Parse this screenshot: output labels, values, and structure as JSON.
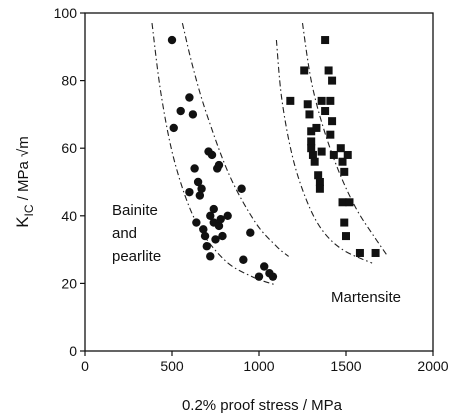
{
  "chart_data": {
    "type": "scatter",
    "xlabel": "0.2% proof stress / MPa",
    "ylabel_main": "K",
    "ylabel_sub": "IC",
    "ylabel_unit": " / MPa √m",
    "xlim": [
      0,
      2000
    ],
    "ylim": [
      0,
      100
    ],
    "x_ticks": [
      0,
      500,
      1000,
      1500,
      2000
    ],
    "y_ticks": [
      0,
      20,
      40,
      60,
      80,
      100
    ],
    "x_tick_labels": [
      "0",
      "500",
      "1000",
      "1500",
      "2000"
    ],
    "y_tick_labels": [
      "0",
      "20",
      "40",
      "60",
      "80",
      "100"
    ],
    "grid": false,
    "annotations": {
      "bainite_line1": "Bainite",
      "bainite_line2": "and",
      "bainite_line3": "pearlite",
      "martensite": "Martensite"
    },
    "series": [
      {
        "marker": "circle",
        "points": [
          [
            500,
            92
          ],
          [
            510,
            66
          ],
          [
            550,
            71
          ],
          [
            600,
            75
          ],
          [
            620,
            70
          ],
          [
            600,
            47
          ],
          [
            630,
            54
          ],
          [
            650,
            50
          ],
          [
            660,
            46
          ],
          [
            670,
            48
          ],
          [
            640,
            38
          ],
          [
            680,
            36
          ],
          [
            690,
            34
          ],
          [
            700,
            31
          ],
          [
            720,
            40
          ],
          [
            740,
            42
          ],
          [
            710,
            59
          ],
          [
            730,
            58
          ],
          [
            760,
            54
          ],
          [
            770,
            55
          ],
          [
            740,
            38
          ],
          [
            770,
            37
          ],
          [
            780,
            39
          ],
          [
            750,
            33
          ],
          [
            790,
            34
          ],
          [
            720,
            28
          ],
          [
            820,
            40
          ],
          [
            900,
            48
          ],
          [
            910,
            27
          ],
          [
            950,
            35
          ],
          [
            1000,
            22
          ],
          [
            1030,
            25
          ],
          [
            1060,
            23
          ],
          [
            1080,
            22
          ]
        ]
      },
      {
        "marker": "square",
        "points": [
          [
            1180,
            74
          ],
          [
            1260,
            83
          ],
          [
            1280,
            73
          ],
          [
            1290,
            70
          ],
          [
            1300,
            65
          ],
          [
            1300,
            62
          ],
          [
            1310,
            58
          ],
          [
            1320,
            56
          ],
          [
            1340,
            52
          ],
          [
            1350,
            50
          ],
          [
            1350,
            48
          ],
          [
            1330,
            66
          ],
          [
            1360,
            59
          ],
          [
            1360,
            74
          ],
          [
            1380,
            71
          ],
          [
            1380,
            92
          ],
          [
            1400,
            83
          ],
          [
            1410,
            74
          ],
          [
            1420,
            68
          ],
          [
            1420,
            80
          ],
          [
            1410,
            64
          ],
          [
            1430,
            58
          ],
          [
            1300,
            60
          ],
          [
            1470,
            60
          ],
          [
            1480,
            56
          ],
          [
            1490,
            53
          ],
          [
            1480,
            44
          ],
          [
            1490,
            38
          ],
          [
            1500,
            34
          ],
          [
            1510,
            58
          ],
          [
            1520,
            44
          ],
          [
            1580,
            29
          ],
          [
            1670,
            29
          ]
        ]
      }
    ],
    "bands": [
      {
        "points": [
          [
            385,
            97
          ],
          [
            440,
            75
          ],
          [
            520,
            55
          ],
          [
            640,
            38
          ],
          [
            800,
            27
          ],
          [
            960,
            22
          ],
          [
            1100,
            19.5
          ]
        ]
      },
      {
        "points": [
          [
            560,
            97
          ],
          [
            620,
            84
          ],
          [
            700,
            70
          ],
          [
            830,
            52
          ],
          [
            980,
            38
          ],
          [
            1100,
            31
          ],
          [
            1170,
            28
          ]
        ]
      },
      {
        "points": [
          [
            1100,
            92
          ],
          [
            1130,
            75
          ],
          [
            1190,
            58
          ],
          [
            1270,
            45
          ],
          [
            1360,
            36
          ],
          [
            1480,
            30
          ],
          [
            1650,
            26
          ]
        ]
      },
      {
        "points": [
          [
            1250,
            97
          ],
          [
            1300,
            80
          ],
          [
            1370,
            66
          ],
          [
            1460,
            53
          ],
          [
            1560,
            42
          ],
          [
            1660,
            34
          ],
          [
            1740,
            28
          ]
        ]
      }
    ]
  }
}
